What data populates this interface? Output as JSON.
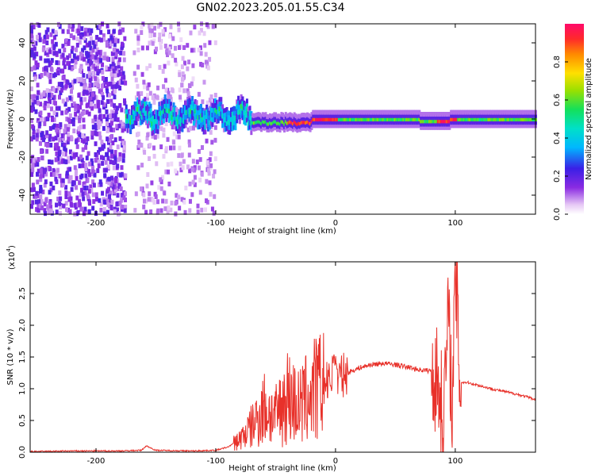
{
  "title": "GN02.2023.205.01.55.C34",
  "chart_data": [
    {
      "type": "heatmap",
      "xlabel": "Height of straight line (km)",
      "ylabel": "Frequency (Hz)",
      "xlim": [
        -255,
        167
      ],
      "ylim": [
        -50,
        50
      ],
      "xticks": [
        -200,
        -100,
        0,
        100
      ],
      "yticks": [
        -40,
        -20,
        0,
        20,
        40
      ],
      "colorbar": {
        "label": "Normalized spectral amplitude",
        "range": [
          0.0,
          1.0
        ],
        "ticks": [
          "0.0",
          "0.2",
          "0.4",
          "0.6",
          "0.8"
        ]
      },
      "regions": [
        {
          "x_range": [
            -255,
            -175
          ],
          "y_range": [
            -50,
            50
          ],
          "description": "dense purple noise"
        },
        {
          "x_range": [
            -168,
            -100
          ],
          "y_range": [
            -50,
            50
          ],
          "description": "sparse light purple noise"
        },
        {
          "x_range": [
            -175,
            -70
          ],
          "center_freq": 2,
          "description": "scattered coherent signal near 0 Hz"
        },
        {
          "x_range": [
            -70,
            167
          ],
          "center_freq": 0,
          "description": "continuous band near 0 Hz, peak red near -40 to 0 and 90 to 100 km"
        }
      ]
    },
    {
      "type": "line",
      "xlabel": "Height of straight line (km)",
      "ylabel": "SNR (10 * v/v)",
      "yscale_note": "(x10",
      "yscale_exp": "4",
      "xlim": [
        -255,
        167
      ],
      "ylim": [
        0,
        3.0
      ],
      "xticks": [
        -200,
        -100,
        0,
        100
      ],
      "yticks": [
        "0.0",
        "0.5",
        "1.0",
        "1.5",
        "2.0",
        "2.5"
      ],
      "color": "#e8312a",
      "series": [
        {
          "x": [
            -255,
            -220,
            -180,
            -162,
            -158,
            -150,
            -120,
            -100,
            -90,
            -80,
            -70,
            -60,
            -50,
            -40,
            -30,
            -20,
            -10,
            0,
            10,
            20,
            30,
            40,
            50,
            60,
            70,
            80,
            86,
            90,
            94,
            98,
            100,
            104,
            110,
            120,
            130,
            140,
            150,
            160,
            167
          ],
          "values": [
            0.01,
            0.02,
            0.02,
            0.03,
            0.1,
            0.03,
            0.02,
            0.03,
            0.08,
            0.2,
            0.4,
            0.7,
            0.55,
            0.9,
            0.7,
            0.95,
            1.05,
            1.15,
            1.25,
            1.33,
            1.38,
            1.4,
            1.38,
            1.34,
            1.3,
            1.28,
            1.1,
            0.5,
            2.1,
            0.7,
            2.9,
            1.1,
            1.1,
            1.05,
            1.0,
            0.96,
            0.92,
            0.87,
            0.83
          ]
        }
      ]
    }
  ]
}
